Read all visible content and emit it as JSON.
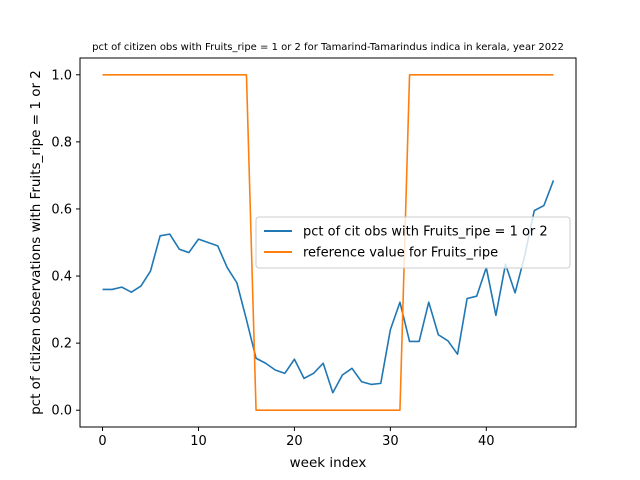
{
  "chart_data": {
    "type": "line",
    "title": "pct of citizen obs with Fruits_ripe = 1 or 2 for Tamarind-Tamarindus indica in kerala, year 2022",
    "xlabel": "week index",
    "ylabel": "pct of citizen observations with Fruits_ripe = 1 or 2",
    "xlim": [
      -2.35,
      49.35
    ],
    "ylim": [
      -0.05,
      1.05
    ],
    "xticks": [
      0,
      10,
      20,
      30,
      40
    ],
    "yticks": [
      0.0,
      0.2,
      0.4,
      0.6,
      0.8,
      1.0
    ],
    "ytick_labels": [
      "0.0",
      "0.2",
      "0.4",
      "0.6",
      "0.8",
      "1.0"
    ],
    "grid": false,
    "legend_position": "center-right",
    "series": [
      {
        "name": "pct of cit obs with Fruits_ripe = 1 or 2",
        "color": "#1f77b4",
        "x": [
          0,
          1,
          2,
          3,
          4,
          5,
          6,
          7,
          8,
          9,
          10,
          11,
          12,
          13,
          14,
          15,
          16,
          17,
          18,
          19,
          20,
          21,
          22,
          23,
          24,
          25,
          26,
          27,
          28,
          29,
          30,
          31,
          32,
          33,
          34,
          35,
          36,
          37,
          38,
          39,
          40,
          41,
          42,
          43,
          44,
          45,
          46,
          47
        ],
        "y": [
          0.36,
          0.36,
          0.367,
          0.352,
          0.37,
          0.415,
          0.52,
          0.525,
          0.48,
          0.47,
          0.51,
          0.5,
          0.49,
          0.425,
          0.38,
          0.27,
          0.155,
          0.14,
          0.12,
          0.11,
          0.152,
          0.095,
          0.11,
          0.14,
          0.052,
          0.105,
          0.125,
          0.085,
          0.077,
          0.08,
          0.24,
          0.322,
          0.205,
          0.205,
          0.322,
          0.225,
          0.207,
          0.167,
          0.333,
          0.34,
          0.425,
          0.283,
          0.435,
          0.35,
          0.46,
          0.595,
          0.61,
          0.685
        ]
      },
      {
        "name": "reference value for Fruits_ripe",
        "color": "#ff7f0e",
        "x": [
          0,
          1,
          2,
          3,
          4,
          5,
          6,
          7,
          8,
          9,
          10,
          11,
          12,
          13,
          14,
          15,
          16,
          17,
          18,
          19,
          20,
          21,
          22,
          23,
          24,
          25,
          26,
          27,
          28,
          29,
          30,
          31,
          32,
          33,
          34,
          35,
          36,
          37,
          38,
          39,
          40,
          41,
          42,
          43,
          44,
          45,
          46,
          47
        ],
        "y": [
          1,
          1,
          1,
          1,
          1,
          1,
          1,
          1,
          1,
          1,
          1,
          1,
          1,
          1,
          1,
          1,
          0,
          0,
          0,
          0,
          0,
          0,
          0,
          0,
          0,
          0,
          0,
          0,
          0,
          0,
          0,
          0,
          1,
          1,
          1,
          1,
          1,
          1,
          1,
          1,
          1,
          1,
          1,
          1,
          1,
          1,
          1,
          1
        ]
      }
    ]
  }
}
